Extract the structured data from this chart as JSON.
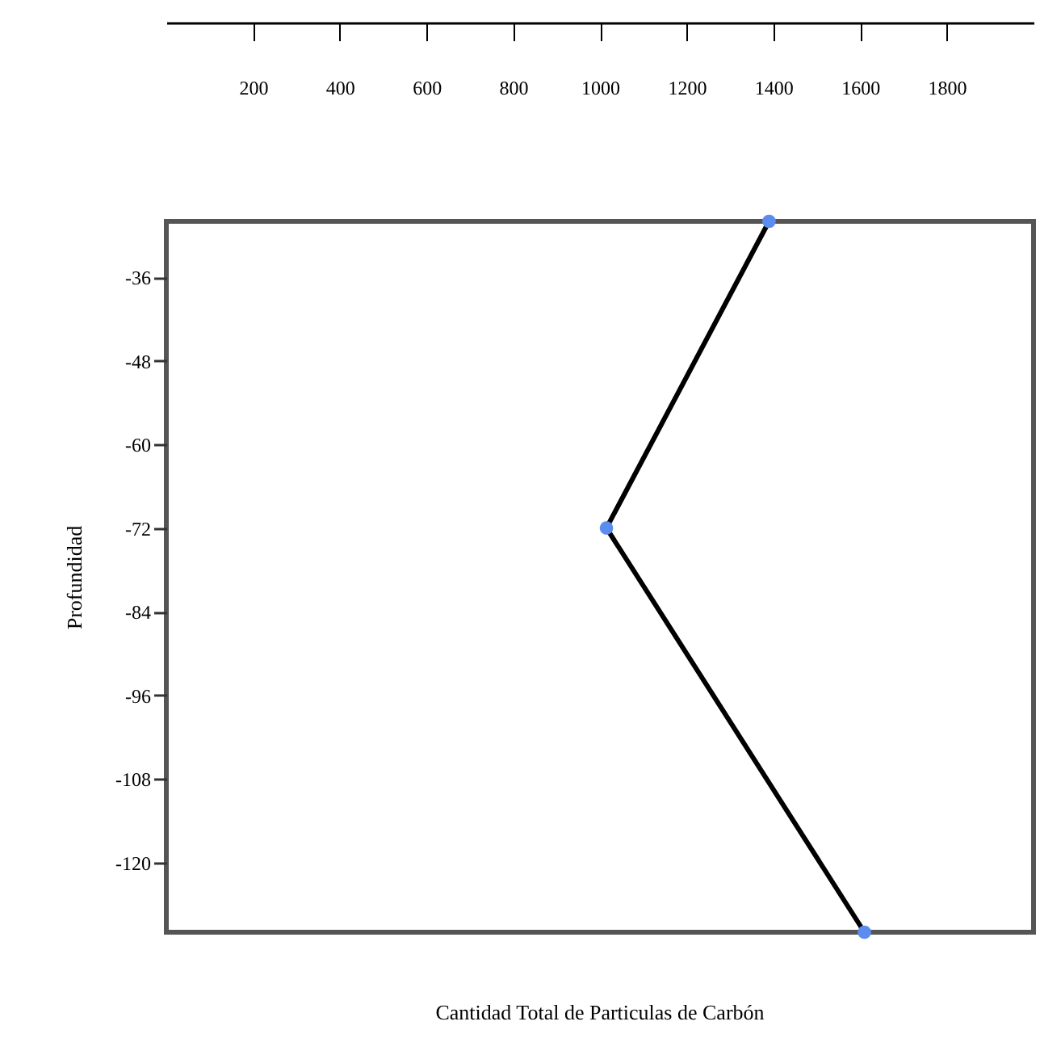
{
  "chart_data": {
    "type": "line",
    "xlabel": "Cantidad Total de Particulas de Carbón",
    "ylabel": "Profundidad",
    "x": [
      1390,
      1015,
      1610
    ],
    "series": [
      {
        "color": "#000000",
        "values": [
          -28,
          -72,
          -130
        ]
      },
      {
        "type": "scatter",
        "color": "#5b8def",
        "values": [
          -28,
          -72,
          -130
        ]
      }
    ],
    "xlim": [
      0,
      2000
    ],
    "xticks": [
      200,
      400,
      600,
      800,
      1000,
      1200,
      1400,
      1600,
      1800
    ],
    "ylim": [
      -130,
      -28
    ],
    "yticks": [
      -36,
      -48,
      -60,
      -72,
      -84,
      -96,
      -108,
      -120
    ],
    "grid": false
  }
}
